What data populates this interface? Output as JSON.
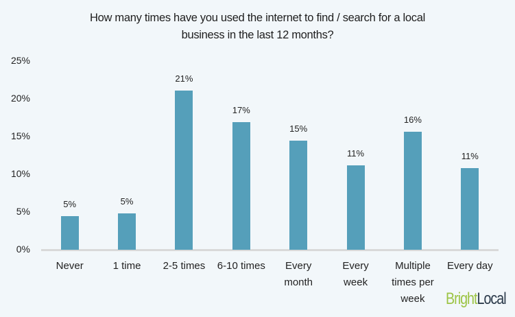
{
  "chart_data": {
    "type": "bar",
    "title": "How many times have you used the internet to find / search for a local business in the last 12 months?",
    "title_lines": [
      "How many times have you used the internet to find / search for a local",
      "business in the last 12 months?"
    ],
    "categories": [
      "Never",
      "1 time",
      "2-5 times",
      "6-10 times",
      "Every month",
      "Every week",
      "Multiple times per week",
      "Every day"
    ],
    "category_lines": [
      [
        "Never"
      ],
      [
        "1 time"
      ],
      [
        "2-5 times"
      ],
      [
        "6-10 times"
      ],
      [
        "Every",
        "month"
      ],
      [
        "Every",
        "week"
      ],
      [
        "Multiple",
        "times per",
        "week"
      ],
      [
        "Every day"
      ]
    ],
    "values": [
      4.5,
      4.8,
      21.1,
      16.9,
      14.5,
      11.2,
      15.6,
      10.8
    ],
    "data_labels": [
      "5%",
      "5%",
      "21%",
      "17%",
      "15%",
      "11%",
      "16%",
      "11%"
    ],
    "xlabel": "",
    "ylabel": "",
    "ylim": [
      0,
      25
    ],
    "yticks": [
      "0%",
      "5%",
      "10%",
      "15%",
      "20%",
      "25%"
    ],
    "grid": false,
    "legend": null,
    "bar_color": "#559fba"
  },
  "branding": {
    "logo_part1": "Bright",
    "logo_part2": "Local",
    "logo_color1": "#9cc444",
    "logo_color2": "#2b3a4a"
  }
}
